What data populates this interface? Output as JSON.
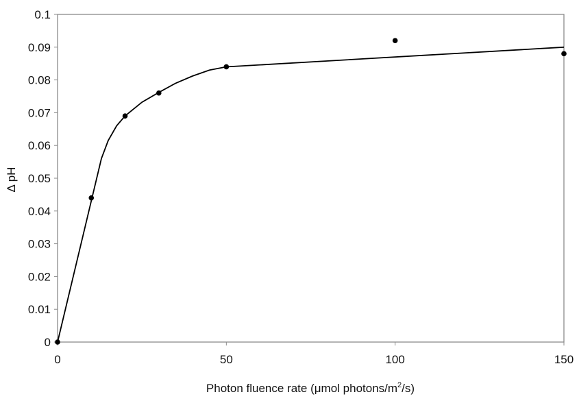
{
  "chart_data": {
    "type": "scatter",
    "title": "",
    "xlabel": "Photon fluence rate (μmol photons/m²/s)",
    "xlabel_parts": {
      "main": "Photon fluence rate (μmol photons/m",
      "sup": "2",
      "end": "/s)"
    },
    "ylabel": "Δ pH",
    "xlim": [
      0,
      150
    ],
    "ylim": [
      0,
      0.1
    ],
    "xticks": [
      "0",
      "50",
      "100",
      "150"
    ],
    "yticks": [
      "0",
      "0.01",
      "0.02",
      "0.03",
      "0.04",
      "0.05",
      "0.06",
      "0.07",
      "0.08",
      "0.09",
      "0.1"
    ],
    "grid": false,
    "legend": "none",
    "points": {
      "x": [
        0,
        10,
        20,
        30,
        50,
        100,
        150
      ],
      "y": [
        0,
        0.044,
        0.069,
        0.076,
        0.084,
        0.092,
        0.088
      ]
    },
    "fit_line": {
      "x": [
        0,
        13,
        15,
        17.5,
        20,
        25,
        30,
        35,
        40,
        45,
        50,
        150
      ],
      "y": [
        0,
        0.056,
        0.0615,
        0.066,
        0.069,
        0.0732,
        0.0762,
        0.079,
        0.0812,
        0.083,
        0.084,
        0.09
      ]
    },
    "colors": {
      "points": "#000000",
      "line": "#000000",
      "axes": "#888888"
    }
  }
}
